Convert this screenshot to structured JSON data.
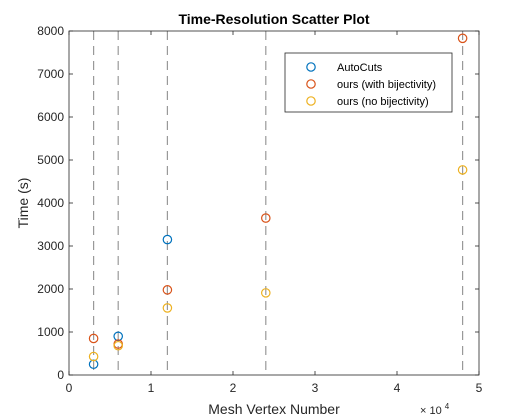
{
  "chart_data": {
    "type": "scatter",
    "title": "Time-Resolution Scatter Plot",
    "xlabel": "Mesh Vertex Number",
    "ylabel": "Time (s)",
    "x_exponent_label": "× 10",
    "x_exponent_power": "4",
    "xlim": [
      0,
      50000
    ],
    "ylim": [
      0,
      8000
    ],
    "x_ticks": [
      0,
      10000,
      20000,
      30000,
      40000,
      50000
    ],
    "x_tick_labels": [
      "0",
      "1",
      "2",
      "3",
      "4",
      "5"
    ],
    "y_ticks": [
      0,
      1000,
      2000,
      3000,
      4000,
      5000,
      6000,
      7000,
      8000
    ],
    "y_tick_labels": [
      "0",
      "1000",
      "2000",
      "3000",
      "4000",
      "5000",
      "6000",
      "7000",
      "8000"
    ],
    "vertical_reference_lines": [
      3000,
      6000,
      12000,
      24000,
      48000
    ],
    "grid": false,
    "legend_position": "top-right",
    "series": [
      {
        "name": "AutoCuts",
        "color": "#0072BD",
        "points": [
          [
            3000,
            250
          ],
          [
            6000,
            900
          ],
          [
            12000,
            3150
          ]
        ]
      },
      {
        "name": "ours (with bijectivity)",
        "color": "#D95319",
        "points": [
          [
            3000,
            850
          ],
          [
            6000,
            720
          ],
          [
            12000,
            1980
          ],
          [
            24000,
            3650
          ],
          [
            48000,
            7830
          ]
        ]
      },
      {
        "name": "ours (no bijectivity)",
        "color": "#EDB120",
        "points": [
          [
            3000,
            430
          ],
          [
            6000,
            680
          ],
          [
            12000,
            1560
          ],
          [
            24000,
            1910
          ],
          [
            48000,
            4770
          ]
        ]
      }
    ]
  }
}
